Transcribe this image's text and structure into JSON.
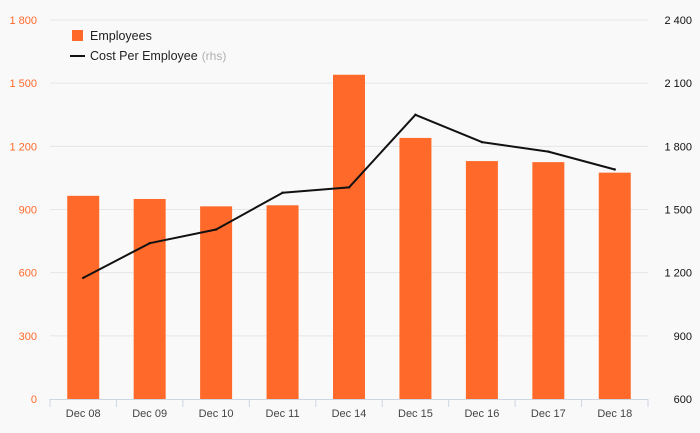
{
  "chart_data": {
    "type": "bar",
    "categories": [
      "Dec 08",
      "Dec 09",
      "Dec 10",
      "Dec 11",
      "Dec 14",
      "Dec 15",
      "Dec 16",
      "Dec 17",
      "Dec 18"
    ],
    "series": [
      {
        "name": "Employees",
        "type": "bar",
        "axis": "left",
        "color": "#ff6a2a",
        "values": [
          965,
          950,
          915,
          920,
          1540,
          1240,
          1130,
          1125,
          1075
        ]
      },
      {
        "name": "Cost Per Employee",
        "name_suffix": "(rhs)",
        "type": "line",
        "axis": "right",
        "color": "#111111",
        "values": [
          1175,
          1340,
          1405,
          1580,
          1605,
          1950,
          1820,
          1775,
          1690
        ]
      }
    ],
    "y_left": {
      "lim": [
        0,
        1800
      ],
      "ticks": [
        0,
        300,
        600,
        900,
        1200,
        1500,
        1800
      ],
      "tick_labels": [
        "0",
        "300",
        "600",
        "900",
        "1 200",
        "1 500",
        "1 800"
      ],
      "color": "#ff6a2a"
    },
    "y_right": {
      "lim": [
        600,
        2400
      ],
      "ticks": [
        600,
        900,
        1200,
        1500,
        1800,
        2100,
        2400
      ],
      "tick_labels": [
        "600",
        "900",
        "1 200",
        "1 500",
        "1 800",
        "2 100",
        "2 400"
      ],
      "color": "#111111"
    },
    "grid": true,
    "legend": "top-left"
  }
}
